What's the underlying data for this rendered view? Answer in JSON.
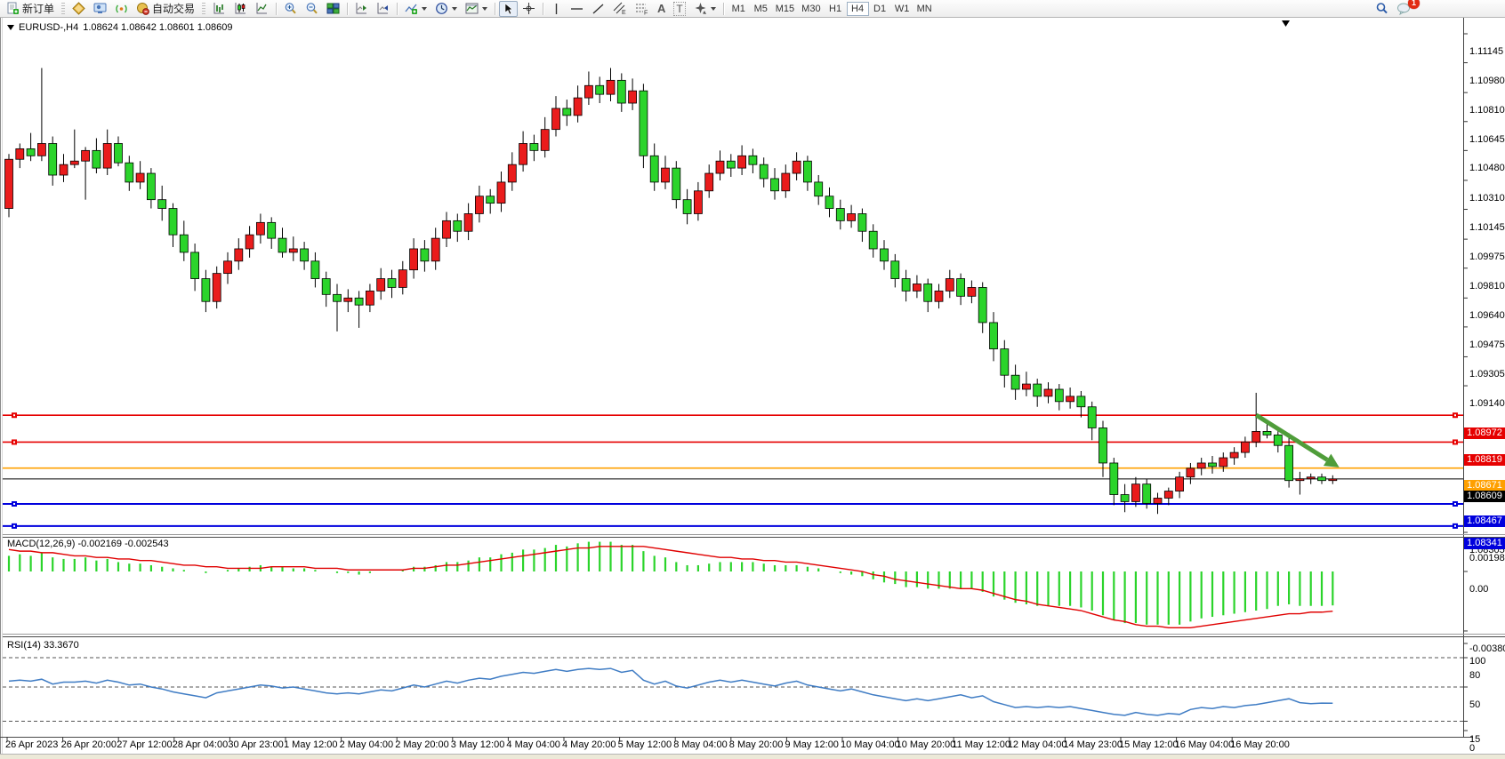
{
  "toolbar": {
    "new_order_label": "新订单",
    "autotrading_label": "自动交易",
    "glyph_channel": "E",
    "glyph_fibo": "F",
    "glyph_text": "A",
    "glyph_label": "T",
    "timeframes": [
      "M1",
      "M5",
      "M15",
      "M30",
      "H1",
      "H4",
      "D1",
      "W1",
      "MN"
    ],
    "active_timeframe": "H4",
    "notification_count": "1"
  },
  "chart": {
    "title_symbol": "EURUSD-,H4",
    "title_ohlc": "1.08624 1.08642 1.08601 1.08609"
  },
  "indicators": {
    "macd_label": "MACD(12,26,9) -0.002169 -0.002543",
    "rsi_label": "RSI(14) 33.3670"
  },
  "colors": {
    "bull": "#ea1c1c",
    "bear": "#2bd42b",
    "wick": "#000000",
    "macd_hist": "#2bd42b",
    "macd_signal": "#e00000",
    "rsi_line": "#3f7cc4",
    "level_red": "#e60000",
    "level_orange": "#ffa000",
    "level_blue": "#0000dd",
    "price_line": "#000000",
    "arrow": "#4f9d3a"
  },
  "chart_data": {
    "type": "candlestick",
    "symbol": "EURUSD-",
    "timeframe": "H4",
    "open": "1.08624",
    "high": "1.08642",
    "low": "1.08601",
    "close": "1.08609",
    "current_price": 1.08609,
    "price_axis_ticks": [
      "1.11145",
      "1.10980",
      "1.10810",
      "1.10645",
      "1.10480",
      "1.10310",
      "1.10145",
      "1.09975",
      "1.09810",
      "1.09640",
      "1.09475",
      "1.09305",
      "1.09140",
      "1.08305"
    ],
    "time_axis_labels": [
      "26 Apr 2023",
      "26 Apr 20:00",
      "27 Apr 12:00",
      "28 Apr 04:00",
      "30 Apr 23:00",
      "1 May 12:00",
      "2 May 04:00",
      "2 May 20:00",
      "3 May 12:00",
      "4 May 04:00",
      "4 May 20:00",
      "5 May 12:00",
      "8 May 04:00",
      "8 May 20:00",
      "9 May 12:00",
      "10 May 04:00",
      "10 May 20:00",
      "11 May 12:00",
      "12 May 04:00",
      "14 May 23:00",
      "15 May 12:00",
      "16 May 04:00",
      "16 May 20:00"
    ],
    "levels": [
      {
        "price": 1.08972,
        "label": "1.08972",
        "color": "#e60000",
        "width": 1.6,
        "handles": true
      },
      {
        "price": 1.08819,
        "label": "1.08819",
        "color": "#e60000",
        "width": 1.6,
        "handles": true
      },
      {
        "price": 1.08671,
        "label": "1.08671",
        "color": "#ffa000",
        "width": 1.6,
        "handles": false
      },
      {
        "price": 1.08609,
        "label": "1.08609",
        "color": "#000000",
        "width": 1.0,
        "handles": false
      },
      {
        "price": 1.08467,
        "label": "1.08467",
        "color": "#0000dd",
        "width": 2.0,
        "handles": true
      },
      {
        "price": 1.08341,
        "label": "1.08341",
        "color": "#0000dd",
        "width": 2.0,
        "handles": true
      }
    ],
    "annotation_arrow": {
      "from_bar": 114,
      "from_price": 1.08973,
      "to_bar": 121.6,
      "to_price": 1.08675
    },
    "candles": [
      [
        1.1015,
        1.1046,
        1.101,
        1.1043
      ],
      [
        1.1043,
        1.1052,
        1.1038,
        1.1049
      ],
      [
        1.1049,
        1.1058,
        1.1042,
        1.1045
      ],
      [
        1.1045,
        1.1095,
        1.1042,
        1.1052
      ],
      [
        1.1052,
        1.1056,
        1.1028,
        1.1034
      ],
      [
        1.1034,
        1.1046,
        1.103,
        1.104
      ],
      [
        1.104,
        1.106,
        1.1038,
        1.1042
      ],
      [
        1.1042,
        1.105,
        1.102,
        1.1048
      ],
      [
        1.1048,
        1.1055,
        1.1035,
        1.1038
      ],
      [
        1.1038,
        1.106,
        1.1034,
        1.1052
      ],
      [
        1.1052,
        1.1056,
        1.1039,
        1.1041
      ],
      [
        1.1041,
        1.1045,
        1.1025,
        1.103
      ],
      [
        1.103,
        1.1042,
        1.1026,
        1.1035
      ],
      [
        1.1035,
        1.1038,
        1.1015,
        1.102
      ],
      [
        1.102,
        1.1028,
        1.1008,
        1.1015
      ],
      [
        1.1015,
        1.1018,
        1.0993,
        1.1
      ],
      [
        1.1,
        1.1008,
        1.0985,
        1.099
      ],
      [
        1.099,
        1.0995,
        1.0968,
        1.0975
      ],
      [
        1.0975,
        1.098,
        1.0956,
        1.0962
      ],
      [
        1.0962,
        1.0982,
        1.0958,
        1.0978
      ],
      [
        1.0978,
        1.099,
        1.0972,
        1.0985
      ],
      [
        1.0985,
        1.0998,
        1.098,
        1.0992
      ],
      [
        1.0992,
        1.1005,
        1.0987,
        1.1
      ],
      [
        1.1,
        1.1012,
        1.0995,
        1.1007
      ],
      [
        1.1007,
        1.101,
        1.0992,
        1.0998
      ],
      [
        1.0998,
        1.1004,
        1.0987,
        1.099
      ],
      [
        1.099,
        1.0999,
        1.0985,
        1.0992
      ],
      [
        1.0992,
        1.0996,
        1.098,
        1.0985
      ],
      [
        1.0985,
        1.099,
        1.097,
        1.0975
      ],
      [
        1.0975,
        1.0979,
        1.0959,
        1.0966
      ],
      [
        1.0966,
        1.0972,
        1.0945,
        1.0962
      ],
      [
        1.0962,
        1.0969,
        1.0956,
        1.0964
      ],
      [
        1.0964,
        1.0968,
        1.0947,
        1.096
      ],
      [
        1.096,
        1.0972,
        1.0956,
        1.0968
      ],
      [
        1.0968,
        1.0981,
        1.0963,
        1.0975
      ],
      [
        1.0975,
        1.098,
        1.0964,
        1.097
      ],
      [
        1.097,
        1.0985,
        1.0966,
        1.098
      ],
      [
        1.098,
        1.0998,
        1.0975,
        1.0992
      ],
      [
        1.0992,
        1.0997,
        1.0979,
        1.0985
      ],
      [
        1.0985,
        1.1004,
        1.098,
        1.0998
      ],
      [
        1.0998,
        1.1013,
        1.0993,
        1.1008
      ],
      [
        1.1008,
        1.1012,
        1.0996,
        1.1002
      ],
      [
        1.1002,
        1.1018,
        1.0997,
        1.1012
      ],
      [
        1.1012,
        1.1028,
        1.1007,
        1.1022
      ],
      [
        1.1022,
        1.1026,
        1.1012,
        1.1018
      ],
      [
        1.1018,
        1.1036,
        1.1013,
        1.103
      ],
      [
        1.103,
        1.1047,
        1.1025,
        1.104
      ],
      [
        1.104,
        1.1059,
        1.1036,
        1.1052
      ],
      [
        1.1052,
        1.1057,
        1.1042,
        1.1048
      ],
      [
        1.1048,
        1.1067,
        1.1044,
        1.106
      ],
      [
        1.106,
        1.1079,
        1.1056,
        1.1072
      ],
      [
        1.1072,
        1.1077,
        1.1062,
        1.1068
      ],
      [
        1.1068,
        1.1085,
        1.1064,
        1.1078
      ],
      [
        1.1078,
        1.1093,
        1.1074,
        1.1085
      ],
      [
        1.1085,
        1.109,
        1.1075,
        1.108
      ],
      [
        1.108,
        1.1095,
        1.1076,
        1.1088
      ],
      [
        1.1088,
        1.1092,
        1.107,
        1.1075
      ],
      [
        1.1075,
        1.1089,
        1.1071,
        1.1082
      ],
      [
        1.1082,
        1.1086,
        1.1038,
        1.1045
      ],
      [
        1.1045,
        1.1052,
        1.1025,
        1.103
      ],
      [
        1.103,
        1.1045,
        1.1026,
        1.1038
      ],
      [
        1.1038,
        1.1042,
        1.1015,
        1.102
      ],
      [
        1.102,
        1.1026,
        1.1006,
        1.1012
      ],
      [
        1.1012,
        1.103,
        1.1008,
        1.1025
      ],
      [
        1.1025,
        1.104,
        1.1021,
        1.1035
      ],
      [
        1.1035,
        1.1048,
        1.1031,
        1.1042
      ],
      [
        1.1042,
        1.1046,
        1.1033,
        1.1038
      ],
      [
        1.1038,
        1.1051,
        1.1034,
        1.1045
      ],
      [
        1.1045,
        1.1049,
        1.1035,
        1.104
      ],
      [
        1.104,
        1.1044,
        1.1027,
        1.1032
      ],
      [
        1.1032,
        1.1038,
        1.102,
        1.1025
      ],
      [
        1.1025,
        1.104,
        1.1021,
        1.1035
      ],
      [
        1.1035,
        1.1047,
        1.1031,
        1.1042
      ],
      [
        1.1042,
        1.1045,
        1.1025,
        1.103
      ],
      [
        1.103,
        1.1034,
        1.1017,
        1.1022
      ],
      [
        1.1022,
        1.1027,
        1.101,
        1.1015
      ],
      [
        1.1015,
        1.102,
        1.1003,
        1.1008
      ],
      [
        1.1008,
        1.1017,
        1.1004,
        1.1012
      ],
      [
        1.1012,
        1.1015,
        1.0996,
        1.1002
      ],
      [
        1.1002,
        1.1006,
        1.0987,
        1.0992
      ],
      [
        1.0992,
        1.0997,
        1.098,
        1.0985
      ],
      [
        1.0985,
        1.0989,
        1.097,
        1.0975
      ],
      [
        1.0975,
        1.098,
        1.0962,
        1.0968
      ],
      [
        1.0968,
        1.0977,
        1.0964,
        1.0972
      ],
      [
        1.0972,
        1.0975,
        1.0956,
        1.0962
      ],
      [
        1.0962,
        1.0972,
        1.0958,
        1.0968
      ],
      [
        1.0968,
        1.098,
        1.0964,
        1.0975
      ],
      [
        1.0975,
        1.0978,
        1.096,
        1.0965
      ],
      [
        1.0965,
        1.0974,
        1.0961,
        1.097
      ],
      [
        1.097,
        1.0973,
        1.0944,
        1.095
      ],
      [
        1.095,
        1.0956,
        1.0928,
        1.0935
      ],
      [
        1.0935,
        1.094,
        1.0913,
        1.092
      ],
      [
        1.092,
        1.0926,
        1.0906,
        1.0912
      ],
      [
        1.0912,
        1.0922,
        1.0908,
        1.0915
      ],
      [
        1.0915,
        1.0918,
        1.0902,
        1.0908
      ],
      [
        1.0908,
        1.0916,
        1.0904,
        1.0912
      ],
      [
        1.0912,
        1.0915,
        1.09,
        1.0905
      ],
      [
        1.0905,
        1.0913,
        1.0901,
        1.0908
      ],
      [
        1.0908,
        1.0911,
        1.0896,
        1.0902
      ],
      [
        1.0902,
        1.0905,
        1.0883,
        1.089
      ],
      [
        1.089,
        1.0894,
        1.0862,
        1.087
      ],
      [
        1.087,
        1.0873,
        1.0846,
        1.0852
      ],
      [
        1.0852,
        1.0858,
        1.0842,
        1.0848
      ],
      [
        1.0848,
        1.0862,
        1.0845,
        1.0858
      ],
      [
        1.0858,
        1.0861,
        1.0844,
        1.0847
      ],
      [
        1.0847,
        1.0853,
        1.0841,
        1.085
      ],
      [
        1.085,
        1.0856,
        1.0846,
        1.0854
      ],
      [
        1.0854,
        1.0865,
        1.085,
        1.0862
      ],
      [
        1.0862,
        1.087,
        1.0858,
        1.0867
      ],
      [
        1.0867,
        1.0873,
        1.0863,
        1.087
      ],
      [
        1.087,
        1.0874,
        1.0864,
        1.0868
      ],
      [
        1.0868,
        1.0876,
        1.0865,
        1.0873
      ],
      [
        1.0873,
        1.0879,
        1.0869,
        1.0876
      ],
      [
        1.0876,
        1.0885,
        1.0873,
        1.0882
      ],
      [
        1.0882,
        1.091,
        1.0879,
        1.0888
      ],
      [
        1.0888,
        1.0892,
        1.0884,
        1.0886
      ],
      [
        1.0886,
        1.0889,
        1.0876,
        1.088
      ],
      [
        1.088,
        1.0887,
        1.0856,
        1.086
      ],
      [
        1.086,
        1.0865,
        1.0852,
        1.0861
      ],
      [
        1.0861,
        1.0864,
        1.0858,
        1.0862
      ],
      [
        1.0862,
        1.0864,
        1.0858,
        1.086
      ],
      [
        1.086,
        1.0863,
        1.0858,
        1.08609
      ]
    ],
    "macd": {
      "label": "MACD(12,26,9) -0.002169 -0.002543",
      "main_value": -0.002169,
      "signal_value": -0.002543,
      "axis_ticks": [
        "0.001982",
        "0.00",
        "-0.003804"
      ],
      "hist": [
        0.001,
        0.0011,
        0.001,
        0.0012,
        0.0009,
        0.0008,
        0.0008,
        0.0009,
        0.0007,
        0.0008,
        0.0006,
        0.0005,
        0.0005,
        0.0004,
        0.0003,
        0.0002,
        0.0001,
        0.0,
        -0.0001,
        0.0,
        0.0001,
        0.0002,
        0.0003,
        0.0004,
        0.0003,
        0.0003,
        0.0002,
        0.0002,
        0.0001,
        0.0,
        -0.0001,
        -0.0001,
        -0.0002,
        -0.0001,
        0.0,
        0.0,
        0.0001,
        0.0003,
        0.0003,
        0.0004,
        0.0006,
        0.0006,
        0.0007,
        0.0009,
        0.0009,
        0.0011,
        0.0012,
        0.0014,
        0.0014,
        0.0015,
        0.0017,
        0.0016,
        0.0018,
        0.0019,
        0.0019,
        0.0019,
        0.0017,
        0.0017,
        0.0013,
        0.001,
        0.0009,
        0.0006,
        0.0004,
        0.0004,
        0.0005,
        0.0006,
        0.0006,
        0.0006,
        0.0006,
        0.0005,
        0.0004,
        0.0004,
        0.0004,
        0.0003,
        0.0002,
        0.0,
        -0.0001,
        -0.0002,
        -0.0003,
        -0.0005,
        -0.0007,
        -0.0008,
        -0.001,
        -0.001,
        -0.0011,
        -0.0011,
        -0.0011,
        -0.0011,
        -0.0011,
        -0.0013,
        -0.0016,
        -0.0018,
        -0.002,
        -0.0021,
        -0.0022,
        -0.0022,
        -0.0022,
        -0.0022,
        -0.0023,
        -0.0025,
        -0.0028,
        -0.0031,
        -0.0033,
        -0.0033,
        -0.0034,
        -0.0034,
        -0.0034,
        -0.0034,
        -0.0032,
        -0.003,
        -0.0029,
        -0.0028,
        -0.0027,
        -0.0026,
        -0.0025,
        -0.0024,
        -0.0022,
        -0.0021,
        -0.0022,
        -0.0022,
        -0.0022,
        -0.00217
      ],
      "signal": [
        0.0014,
        0.0013,
        0.0013,
        0.0012,
        0.0012,
        0.0011,
        0.001,
        0.001,
        0.0009,
        0.0009,
        0.0008,
        0.0008,
        0.0007,
        0.0007,
        0.0006,
        0.0005,
        0.0004,
        0.0004,
        0.0003,
        0.0003,
        0.0002,
        0.0002,
        0.0002,
        0.0002,
        0.0003,
        0.0003,
        0.0003,
        0.0003,
        0.0002,
        0.0002,
        0.0002,
        0.0001,
        0.0001,
        0.0001,
        0.0001,
        0.0001,
        0.0001,
        0.0002,
        0.0002,
        0.0003,
        0.0004,
        0.0004,
        0.0005,
        0.0006,
        0.0007,
        0.0008,
        0.0009,
        0.001,
        0.0011,
        0.0012,
        0.0013,
        0.0014,
        0.0015,
        0.0015,
        0.0016,
        0.0016,
        0.0016,
        0.0016,
        0.0016,
        0.0015,
        0.0014,
        0.0013,
        0.0012,
        0.0011,
        0.001,
        0.0009,
        0.0009,
        0.0008,
        0.0008,
        0.0007,
        0.0007,
        0.0006,
        0.0006,
        0.0005,
        0.0004,
        0.0003,
        0.0002,
        0.0001,
        0.0,
        -0.0002,
        -0.0003,
        -0.0005,
        -0.0006,
        -0.0007,
        -0.0008,
        -0.0009,
        -0.001,
        -0.0011,
        -0.0011,
        -0.0012,
        -0.0014,
        -0.0016,
        -0.0018,
        -0.0019,
        -0.0021,
        -0.0022,
        -0.0023,
        -0.0024,
        -0.0025,
        -0.0027,
        -0.0029,
        -0.0031,
        -0.0032,
        -0.0034,
        -0.0035,
        -0.0035,
        -0.0036,
        -0.0036,
        -0.0036,
        -0.0035,
        -0.0034,
        -0.0033,
        -0.0032,
        -0.0031,
        -0.003,
        -0.0029,
        -0.0028,
        -0.0027,
        -0.0027,
        -0.0026,
        -0.0026,
        -0.00254
      ]
    },
    "rsi": {
      "label": "RSI(14) 33.3670",
      "period": 14,
      "value": 33.367,
      "axis_ticks": [
        "100",
        "80",
        "50",
        "15",
        "0"
      ],
      "dashed_levels": [
        80,
        50,
        15
      ],
      "values": [
        56,
        57,
        56,
        58,
        53,
        55,
        55,
        56,
        54,
        57,
        55,
        52,
        53,
        50,
        48,
        45,
        43,
        41,
        39,
        44,
        46,
        48,
        50,
        52,
        51,
        49,
        50,
        48,
        46,
        44,
        43,
        44,
        43,
        45,
        47,
        46,
        49,
        52,
        50,
        53,
        56,
        54,
        57,
        59,
        58,
        61,
        63,
        65,
        64,
        66,
        68,
        66,
        68,
        69,
        68,
        69,
        65,
        67,
        57,
        53,
        56,
        51,
        49,
        52,
        55,
        57,
        55,
        57,
        55,
        53,
        51,
        54,
        56,
        52,
        50,
        48,
        46,
        48,
        45,
        42,
        40,
        38,
        36,
        38,
        36,
        38,
        40,
        42,
        39,
        41,
        35,
        32,
        29,
        30,
        29,
        30,
        29,
        30,
        28,
        26,
        24,
        22,
        21,
        24,
        22,
        21,
        23,
        22,
        27,
        29,
        28,
        30,
        29,
        31,
        32,
        34,
        36,
        38,
        34,
        33,
        33.5,
        33.367
      ]
    }
  }
}
